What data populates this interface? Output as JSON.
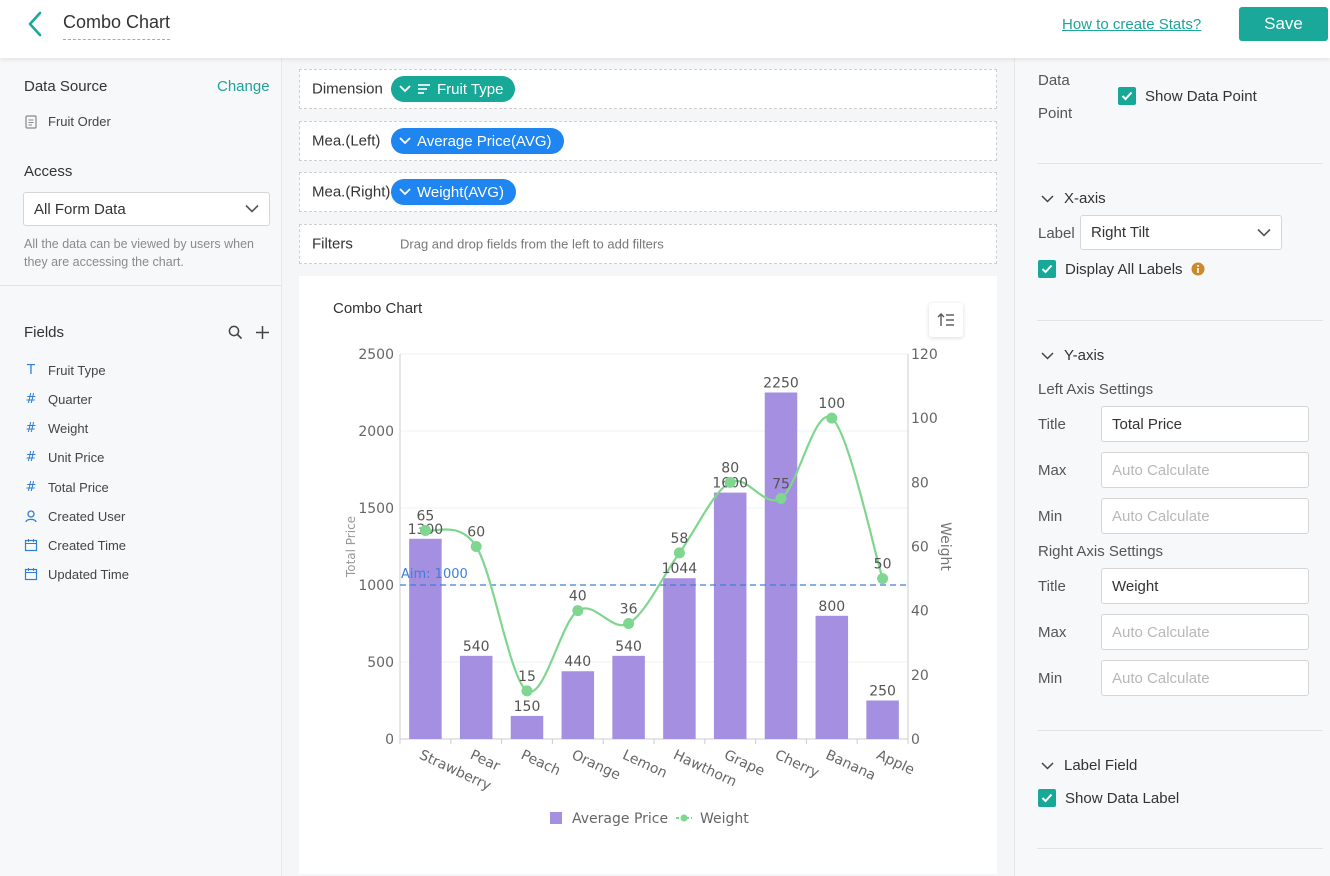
{
  "header": {
    "title": "Combo Chart",
    "help_link": "How to create Stats?",
    "save_label": "Save"
  },
  "left": {
    "data_source_label": "Data Source",
    "change_label": "Change",
    "source_name": "Fruit Order",
    "access_label": "Access",
    "access_value": "All Form Data",
    "access_hint": "All the data can be viewed by users when they are accessing the chart.",
    "fields_label": "Fields",
    "fields": [
      {
        "icon": "text-field-icon",
        "glyph": "T",
        "label": "Fruit Type"
      },
      {
        "icon": "number-field-icon",
        "glyph": "#",
        "label": "Quarter"
      },
      {
        "icon": "number-field-icon",
        "glyph": "#",
        "label": "Weight"
      },
      {
        "icon": "number-field-icon",
        "glyph": "#",
        "label": "Unit Price"
      },
      {
        "icon": "number-field-icon",
        "glyph": "#",
        "label": "Total Price"
      },
      {
        "icon": "user-field-icon",
        "glyph": "user",
        "label": "Created User"
      },
      {
        "icon": "date-field-icon",
        "glyph": "cal",
        "label": "Created Time"
      },
      {
        "icon": "date-field-icon",
        "glyph": "cal",
        "label": "Updated Time"
      }
    ]
  },
  "center": {
    "dimension_label": "Dimension",
    "dimension_pill": "Fruit Type",
    "mea_left_label": "Mea.(Left)",
    "mea_left_pill": "Average Price(AVG)",
    "mea_right_label": "Mea.(Right)",
    "mea_right_pill": "Weight(AVG)",
    "filters_label": "Filters",
    "filters_hint": "Drag and drop fields from the left to add filters"
  },
  "chart_data": {
    "type": "bar",
    "title": "Combo Chart",
    "categories": [
      "Strawberry",
      "Pear",
      "Peach",
      "Orange",
      "Lemon",
      "Hawthorn",
      "Grape",
      "Cherry",
      "Banana",
      "Apple"
    ],
    "series": [
      {
        "name": "Average Price",
        "type": "bar",
        "axis": "left",
        "color": "#a48fe0",
        "values": [
          1300,
          540,
          150,
          440,
          540,
          1044,
          1600,
          2250,
          800,
          250
        ]
      },
      {
        "name": "Weight",
        "type": "line",
        "axis": "right",
        "color": "#7fd68f",
        "values": [
          65,
          60,
          15,
          40,
          36,
          58,
          80,
          75,
          100,
          50
        ]
      }
    ],
    "ylabel_left": "Total Price",
    "ylabel_right": "Weight",
    "ylim_left": [
      0,
      2500
    ],
    "ylim_right": [
      0,
      120
    ],
    "yticks_left": [
      0,
      500,
      1000,
      1500,
      2000,
      2500
    ],
    "yticks_right": [
      0,
      20,
      40,
      60,
      80,
      100,
      120
    ],
    "aim_line": {
      "label": "Aim:",
      "value": 1000
    },
    "x_label_rotation": "right-tilt",
    "legend_position": "bottom-center"
  },
  "right": {
    "data_point_label_1": "Data",
    "data_point_label_2": "Point",
    "show_data_point": "Show Data Point",
    "x_axis_title": "X-axis",
    "x_label_label": "Label",
    "x_label_value": "Right Tilt",
    "display_all_labels": "Display All Labels",
    "y_axis_title": "Y-axis",
    "left_axis_settings": "Left Axis Settings",
    "title_label": "Title",
    "left_title_value": "Total Price",
    "max_label": "Max",
    "min_label": "Min",
    "auto_placeholder": "Auto Calculate",
    "right_axis_settings": "Right Axis Settings",
    "right_title_value": "Weight",
    "label_field_title": "Label Field",
    "show_data_label": "Show Data Label"
  },
  "colors": {
    "accent": "#18a897",
    "pill_blue": "#1f85f0",
    "bar": "#a48fe0",
    "line": "#7fd68f",
    "aim": "#3f7fd8"
  }
}
